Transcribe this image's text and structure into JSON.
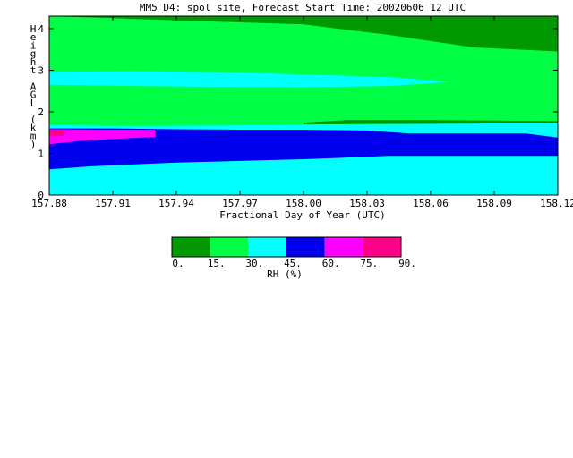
{
  "chart_data": {
    "type": "heatmap",
    "title": "MM5_D4: spol site,  Forecast Start Time: 20020606 12 UTC",
    "xlabel": "Fractional Day of Year (UTC)",
    "ylabel": "Height AGL (km)",
    "xlim": [
      157.88,
      158.12
    ],
    "ylim": [
      0,
      4.3
    ],
    "x_ticks": [
      "157.88",
      "157.91",
      "157.94",
      "157.97",
      "158.00",
      "158.03",
      "158.06",
      "158.09",
      "158.12"
    ],
    "x_tick_values": [
      157.88,
      157.91,
      157.94,
      157.97,
      158.0,
      158.03,
      158.06,
      158.09,
      158.12
    ],
    "y_ticks": [
      "0",
      "1",
      "2",
      "3",
      "4"
    ],
    "y_tick_values": [
      0,
      1,
      2,
      3,
      4
    ],
    "colorbar": {
      "label": "RH (%)",
      "tick_labels": [
        "0.",
        "15.",
        "30.",
        "45.",
        "60.",
        "75.",
        "90."
      ],
      "bins": [
        {
          "from": 0,
          "to": 15,
          "color": "#009900"
        },
        {
          "from": 15,
          "to": 30,
          "color": "#00ff44"
        },
        {
          "from": 30,
          "to": 45,
          "color": "#00ffff"
        },
        {
          "from": 45,
          "to": 60,
          "color": "#0000ee"
        },
        {
          "from": 60,
          "to": 75,
          "color": "#ff00ff"
        },
        {
          "from": 75,
          "to": 90,
          "color": "#ff0088"
        }
      ]
    },
    "regions": [
      {
        "rh_bin": "30-45",
        "color": "#00ffff",
        "x": [
          157.88,
          158.12,
          158.12,
          157.88
        ],
        "y": [
          0,
          0,
          4.3,
          4.3
        ]
      },
      {
        "rh_bin": "45-60",
        "color": "#0000ee",
        "x": [
          157.88,
          157.9,
          157.94,
          158.0,
          158.04,
          158.07,
          158.1,
          158.12,
          158.12,
          158.105,
          158.08,
          158.05,
          158.03,
          158.0,
          157.97,
          157.94,
          157.91,
          157.88
        ],
        "y": [
          0.62,
          0.69,
          0.78,
          0.86,
          0.94,
          0.94,
          0.94,
          0.94,
          1.38,
          1.48,
          1.48,
          1.48,
          1.55,
          1.57,
          1.57,
          1.58,
          1.6,
          1.6
        ]
      },
      {
        "rh_bin": "60-75",
        "color": "#ff00ff",
        "x": [
          157.88,
          157.895,
          157.915,
          157.93,
          157.93,
          157.91,
          157.885,
          157.88
        ],
        "y": [
          1.22,
          1.3,
          1.36,
          1.39,
          1.57,
          1.57,
          1.58,
          1.58
        ]
      },
      {
        "rh_bin": "75-90",
        "color": "#ff0088",
        "x": [
          157.88,
          157.887,
          157.887,
          157.88
        ],
        "y": [
          1.42,
          1.42,
          1.56,
          1.56
        ]
      },
      {
        "rh_bin": "15-30",
        "color": "#00ff44",
        "x": [
          157.88,
          157.92,
          157.96,
          158.0,
          158.04,
          158.08,
          158.12,
          158.12,
          157.88
        ],
        "y": [
          1.68,
          1.66,
          1.67,
          1.69,
          1.71,
          1.73,
          1.75,
          4.3,
          4.3
        ]
      },
      {
        "rh_bin": "0-15",
        "color": "#009900",
        "x": [
          158.0,
          158.02,
          158.06,
          158.09,
          158.12,
          158.12,
          158.09,
          158.05,
          158.0
        ],
        "y": [
          1.74,
          1.8,
          1.8,
          1.79,
          1.78,
          1.72,
          1.72,
          1.71,
          1.7
        ]
      },
      {
        "rh_bin": "30-45",
        "color": "#00ffff",
        "x": [
          157.88,
          157.92,
          157.96,
          158.0,
          158.04,
          158.07,
          158.04,
          158.0,
          157.96,
          157.92,
          157.88
        ],
        "y": [
          2.96,
          2.98,
          2.95,
          2.9,
          2.84,
          2.72,
          2.62,
          2.59,
          2.6,
          2.62,
          2.65
        ]
      },
      {
        "rh_bin": "0-15",
        "color": "#009900",
        "x": [
          157.88,
          157.94,
          158.0,
          158.04,
          158.08,
          158.12,
          158.12,
          157.88
        ],
        "y": [
          4.3,
          4.2,
          4.1,
          3.85,
          3.55,
          3.45,
          4.3,
          4.3
        ]
      }
    ]
  }
}
